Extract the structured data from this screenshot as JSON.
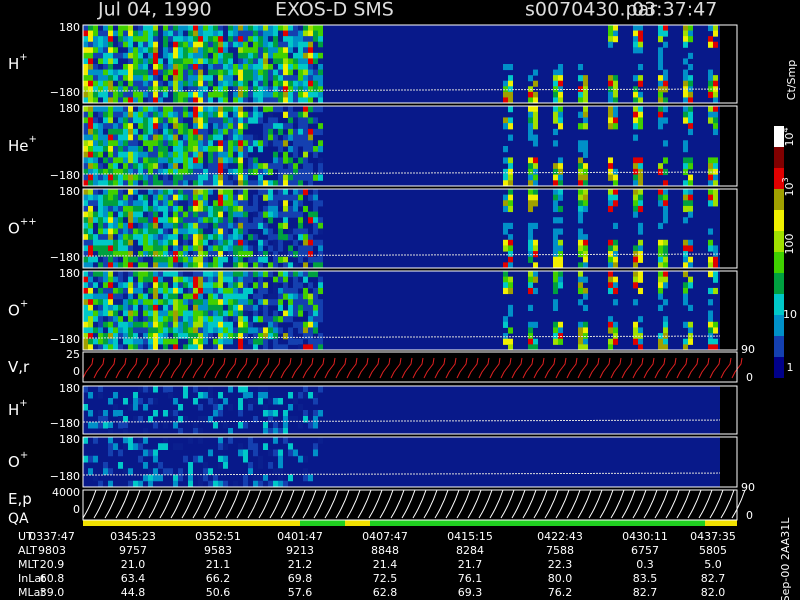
{
  "header": {
    "date": "Jul 04, 1990",
    "instrument": "EXOS-D SMS",
    "file": "s0070430.par",
    "time": "03:37:47"
  },
  "panels": [
    {
      "label": "H",
      "sup": "+",
      "top": "180",
      "bottom": "−180"
    },
    {
      "label": "He",
      "sup": "+",
      "top": "180",
      "bottom": "−180"
    },
    {
      "label": "O",
      "sup": "++",
      "top": "180",
      "bottom": "−180"
    },
    {
      "label": "O",
      "sup": "+",
      "top": "180",
      "bottom": "−180"
    },
    {
      "label": "V,r",
      "top": "25",
      "bottom": "0",
      "right": "90",
      "right_low": "0"
    },
    {
      "label": "H",
      "sup": "+",
      "top": "180",
      "bottom": "−180"
    },
    {
      "label": "O",
      "sup": "+",
      "top": "180",
      "bottom": "−180"
    },
    {
      "label": "E,p",
      "label2": "QA",
      "top": "4000",
      "bottom": "0",
      "right": "90",
      "right_low": "0"
    }
  ],
  "colorbar": {
    "unit": "Ct/Smp",
    "labels": [
      "1",
      "10",
      "100",
      {
        "base": "10",
        "exp": "3"
      },
      {
        "base": "10",
        "exp": "4"
      }
    ]
  },
  "table": {
    "rows": [
      {
        "label": "UT",
        "values": [
          "0337:47",
          "0345:23",
          "0352:51",
          "0401:47",
          "0407:47",
          "0415:15",
          "0422:43",
          "0430:11",
          "0437:35"
        ]
      },
      {
        "label": "ALT",
        "values": [
          "9803",
          "9757",
          "9583",
          "9213",
          "8848",
          "8284",
          "7588",
          "6757",
          "5805"
        ]
      },
      {
        "label": "MLT",
        "values": [
          "20.9",
          "21.0",
          "21.1",
          "21.2",
          "21.4",
          "21.7",
          "22.3",
          "0.3",
          "5.0"
        ]
      },
      {
        "label": "InLat",
        "values": [
          "60.8",
          "63.4",
          "66.2",
          "69.8",
          "72.5",
          "76.1",
          "80.0",
          "83.5",
          "82.7"
        ]
      },
      {
        "label": "MLat",
        "values": [
          "39.0",
          "44.8",
          "50.6",
          "57.6",
          "62.8",
          "69.3",
          "76.2",
          "82.7",
          "82.0"
        ]
      }
    ]
  },
  "footer": "Sep-00  2AA31L"
}
